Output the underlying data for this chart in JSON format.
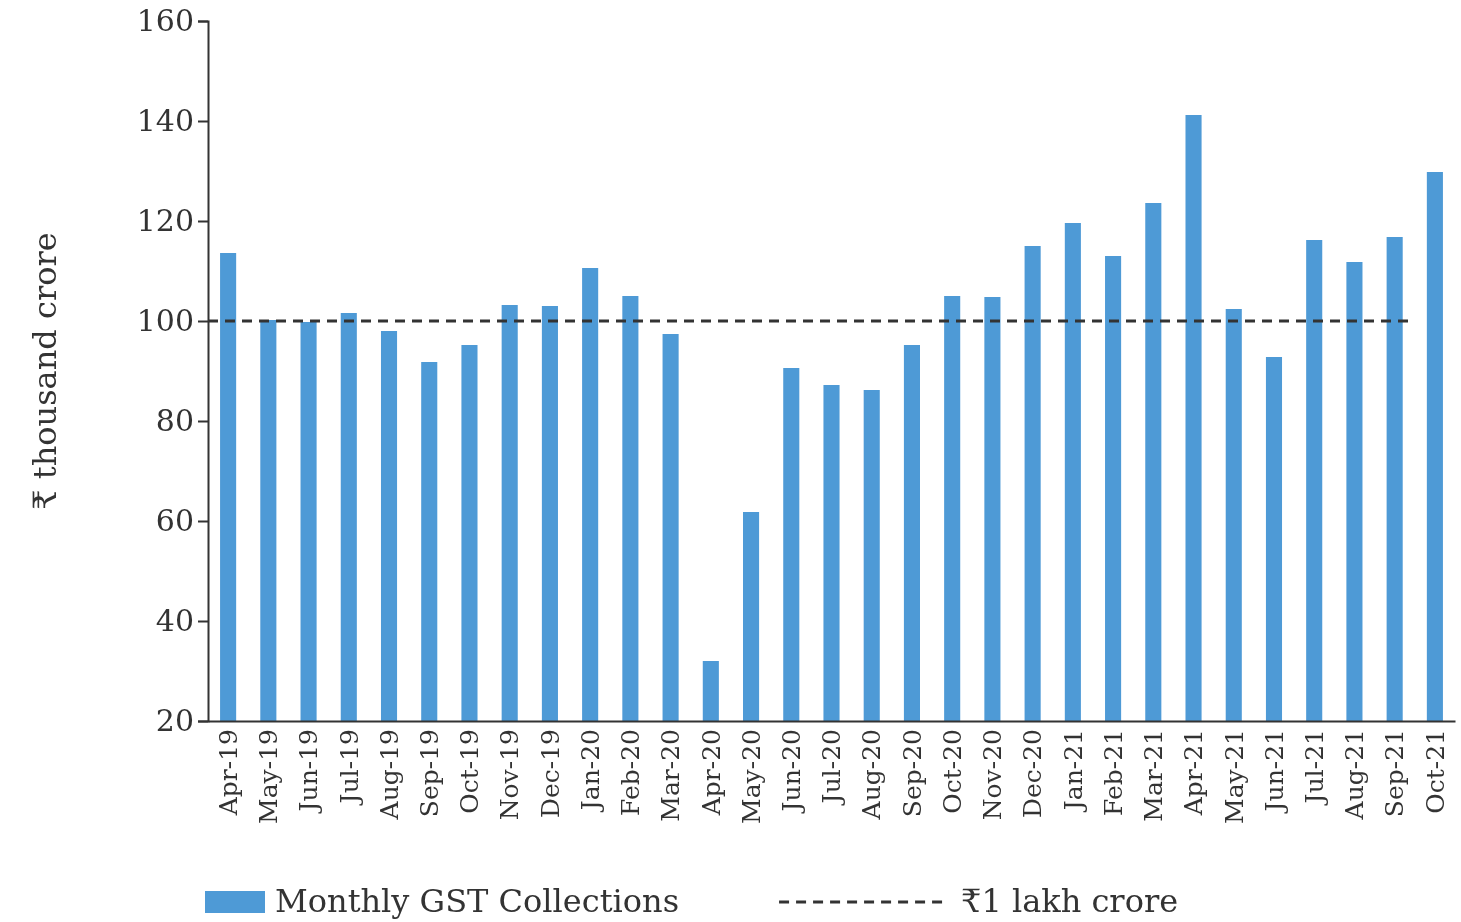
{
  "chart_data": {
    "type": "bar",
    "ylabel": "₹ thousand crore",
    "categories": [
      "Apr-19",
      "May-19",
      "Jun-19",
      "Jul-19",
      "Aug-19",
      "Sep-19",
      "Oct-19",
      "Nov-19",
      "Dec-19",
      "Jan-20",
      "Feb-20",
      "Mar-20",
      "Apr-20",
      "May-20",
      "Jun-20",
      "Jul-20",
      "Aug-20",
      "Sep-20",
      "Oct-20",
      "Nov-20",
      "Dec-20",
      "Jan-21",
      "Feb-21",
      "Mar-21",
      "Apr-21",
      "May-21",
      "Jun-21",
      "Jul-21",
      "Aug-21",
      "Sep-21",
      "Oct-21"
    ],
    "series": [
      {
        "name": "Monthly GST Collections",
        "color": "#4e9ad6",
        "values": [
          113.6,
          100.2,
          99.8,
          101.6,
          98,
          91.8,
          95.2,
          103.2,
          103,
          110.6,
          105,
          97.4,
          32,
          61.8,
          90.6,
          87.2,
          86.2,
          95.2,
          105,
          104.8,
          115,
          119.6,
          113,
          123.6,
          141.2,
          102.4,
          92.8,
          116.2,
          111.8,
          116.8,
          129.8
        ]
      }
    ],
    "ylim": [
      20,
      160
    ],
    "yticks": [
      20,
      40,
      60,
      80,
      100,
      120,
      140,
      160
    ],
    "ref_lines": [
      {
        "axis": "y",
        "value": 100,
        "label": "₹1 lakh crore",
        "color": "#333333",
        "line_style": "dashed"
      }
    ],
    "legend": "bottom",
    "grid": false
  }
}
